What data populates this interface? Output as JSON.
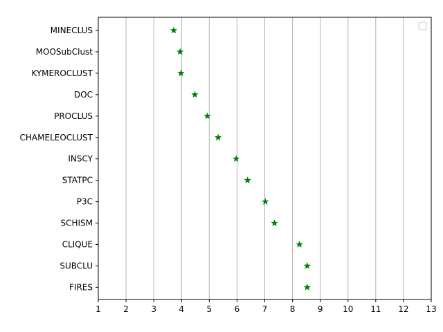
{
  "chart_data": {
    "type": "scatter",
    "title": "",
    "xlabel": "",
    "ylabel": "",
    "xlim": [
      1,
      13
    ],
    "xticks": [
      1,
      2,
      3,
      4,
      5,
      6,
      7,
      8,
      9,
      10,
      11,
      12,
      13
    ],
    "grid": "vertical",
    "legend": {
      "placement": "top-right",
      "entries": []
    },
    "marker": "star",
    "colors": {
      "marker": "#008000",
      "grid": "#b0b0b0",
      "axis": "#000000"
    },
    "categories": [
      "MINECLUS",
      "MOOSubClust",
      "KYMEROCLUST",
      "DOC",
      "PROCLUS",
      "CHAMELEOCLUST",
      "INSCY",
      "STATPC",
      "P3C",
      "SCHISM",
      "CLIQUE",
      "SUBCLU",
      "FIRES"
    ],
    "series": [
      {
        "values": [
          3.72,
          3.95,
          3.98,
          4.48,
          4.93,
          5.32,
          5.97,
          6.38,
          7.02,
          7.35,
          8.25,
          8.53,
          8.53
        ]
      }
    ]
  }
}
